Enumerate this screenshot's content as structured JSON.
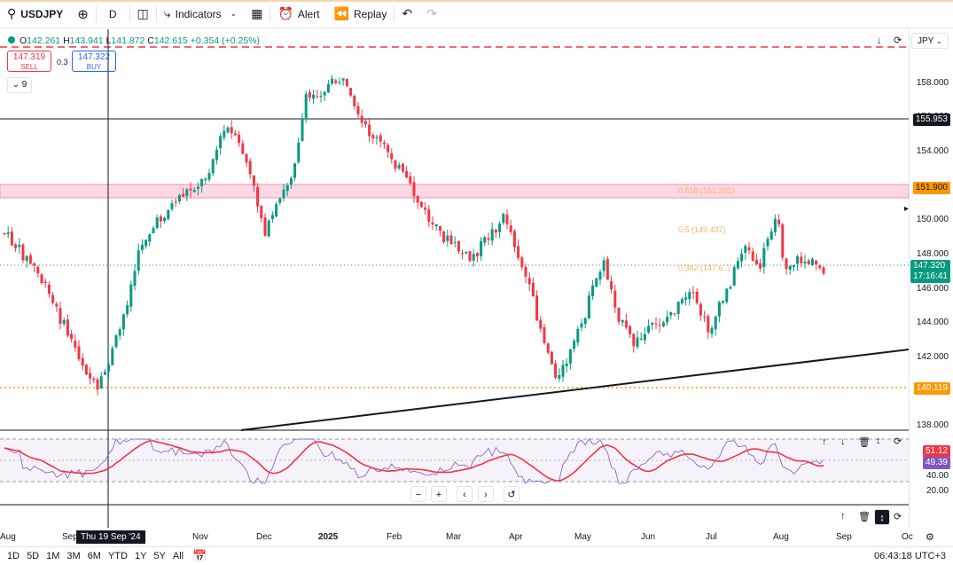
{
  "toolbar": {
    "symbol": "USDJPY",
    "interval": "D",
    "indicators_label": "Indicators",
    "alert_label": "Alert",
    "replay_label": "Replay"
  },
  "legend": {
    "o_label": "O",
    "o": "142.261",
    "h_label": "H",
    "h": "143.941",
    "l_label": "L",
    "l": "141.872",
    "c_label": "C",
    "c": "142.615",
    "change": "+0.354 (+0.25%)"
  },
  "trade": {
    "sell_price": "147.319",
    "sell_label": "SELL",
    "spread": "0.3",
    "buy_price": "147.322",
    "buy_label": "BUY"
  },
  "indicator_count": "9",
  "currency_button": "JPY",
  "price_axis": {
    "ticks": [
      "158.000",
      "156.000",
      "154.000",
      "152.000",
      "150.000",
      "148.000",
      "146.000",
      "144.000",
      "142.000",
      "140.000",
      "138.000"
    ],
    "tags": {
      "resistance": "155.953",
      "zone": "151.900",
      "last_price": "147.320",
      "countdown": "17:16:41",
      "support": "140.119"
    }
  },
  "fib_labels": {
    "f618": "0.618 (151.201)",
    "f05": "0.5 (149.437)",
    "f382": "0.382 (147.6..)"
  },
  "rsi": {
    "ticks": [
      "40.00",
      "20.00"
    ],
    "rsi_value": "51.12",
    "ma_value": "49.39",
    "colors": {
      "rsi": "#7e57c2",
      "ma": "#f23645"
    }
  },
  "time_axis": {
    "labels": [
      "Aug",
      "Sep",
      "Nov",
      "Dec",
      "2025",
      "Feb",
      "Mar",
      "Apr",
      "May",
      "Jun",
      "Jul",
      "Aug",
      "Sep",
      "Oc"
    ],
    "crosshair_date": "Thu 19 Sep '24"
  },
  "bottom": {
    "ranges": [
      "1D",
      "5D",
      "1M",
      "3M",
      "6M",
      "YTD",
      "1Y",
      "5Y",
      "All"
    ],
    "clock": "06:43:18 UTC+3"
  },
  "colors": {
    "up": "#089981",
    "down": "#f23645",
    "accent": "#2962ff"
  }
}
